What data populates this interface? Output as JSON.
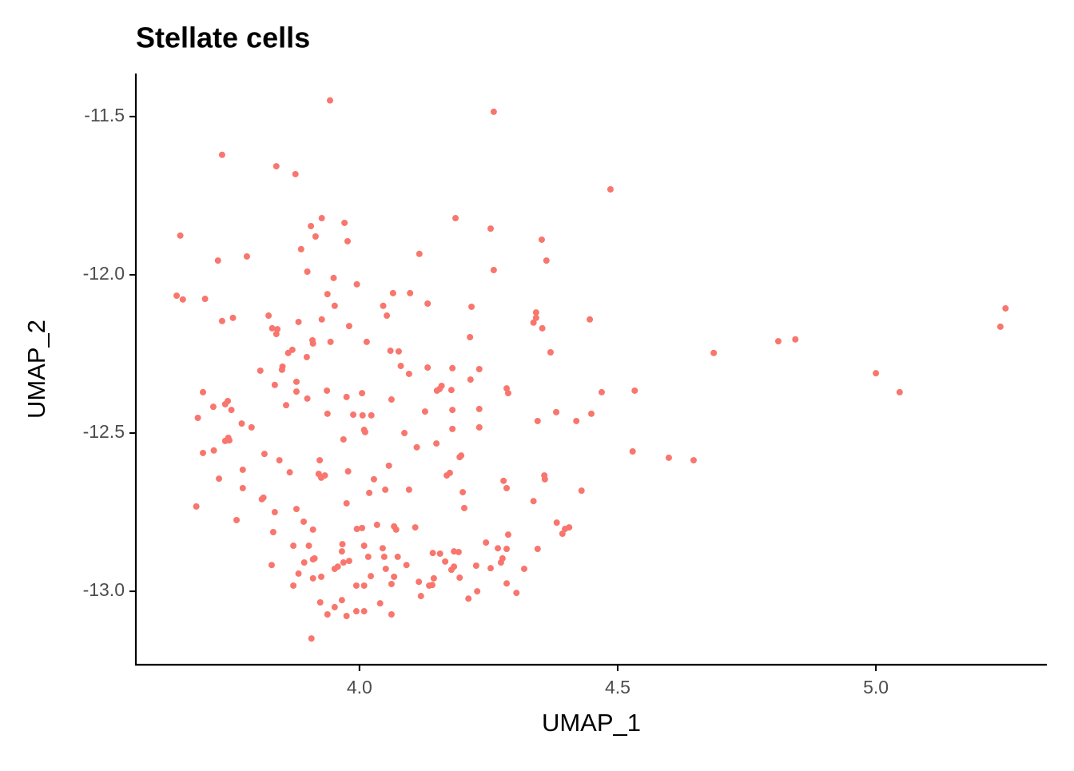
{
  "chart_data": {
    "type": "scatter",
    "title": "Stellate cells",
    "x_label": "UMAP_1",
    "y_label": "UMAP_2",
    "color": "#F8766D",
    "xlim": [
      3.567,
      5.331
    ],
    "ylim": [
      -13.232,
      -11.364
    ],
    "xticks": [
      {
        "value": 4,
        "label": "4.0"
      },
      4.5,
      {
        "value": 5,
        "label": "5.0"
      }
    ],
    "yticks": [
      -11.5,
      {
        "value": -12,
        "label": "-12.0"
      },
      -12.5,
      {
        "value": -13,
        "label": "-13.0"
      }
    ],
    "x": [
      3.943,
      4.26,
      3.734,
      3.839,
      3.876,
      4.486,
      3.653,
      3.971,
      3.927,
      3.906,
      3.915,
      4.254,
      4.186,
      3.977,
      3.887,
      4.353,
      4.116,
      3.726,
      3.782,
      4.362,
      4.26,
      3.899,
      3.95,
      3.646,
      3.658,
      3.701,
      3.995,
      3.938,
      4.065,
      4.098,
      4.046,
      3.952,
      4.132,
      4.217,
      4.342,
      4.342,
      5.251,
      5.241,
      3.734,
      3.755,
      3.824,
      3.882,
      3.927,
      4.053,
      3.98,
      4.354,
      4.337,
      4.446,
      3.831,
      3.841,
      3.909,
      3.91,
      3.944,
      3.839,
      4.214,
      4.014,
      3.87,
      3.862,
      4.06,
      4.076,
      4.37,
      4.686,
      4.811,
      4.844,
      3.898,
      3.851,
      3.85,
      3.808,
      4.08,
      4.096,
      4.132,
      4.18,
      4.232,
      3.878,
      3.878,
      4.215,
      3.836,
      3.937,
      4.155,
      4.159,
      4.15,
      4.178,
      4.285,
      4.288,
      5.0,
      5.046,
      4.469,
      4.533,
      3.697,
      3.745,
      3.74,
      3.717,
      3.752,
      3.899,
      3.975,
      4.005,
      4.062,
      3.858,
      4.232,
      4.127,
      4.18,
      3.938,
      3.988,
      4.006,
      4.023,
      4.009,
      4.011,
      3.687,
      3.772,
      3.791,
      4.345,
      4.381,
      4.42,
      4.449,
      4.232,
      4.18,
      4.087,
      3.969,
      4.149,
      4.111,
      3.746,
      3.74,
      3.748,
      3.697,
      3.718,
      3.816,
      3.845,
      4.529,
      4.599,
      4.647,
      4.197,
      4.194,
      3.923,
      4.057,
      3.774,
      3.865,
      3.978,
      4.175,
      4.169,
      3.921,
      3.926,
      3.933,
      3.728,
      4.028,
      4.279,
      4.285,
      3.774,
      4.05,
      4.096,
      4.2,
      4.358,
      4.359,
      4.43,
      3.814,
      3.811,
      3.975,
      4.019,
      4.337,
      4.203,
      3.684,
      3.878,
      3.836,
      3.762,
      3.892,
      3.833,
      3.91,
      4.034,
      4.005,
      3.995,
      4.108,
      4.067,
      4.071,
      4.382,
      4.398,
      4.406,
      4.393,
      4.288,
      3.872,
      3.902,
      3.967,
      3.966,
      4.009,
      4.045,
      4.074,
      4.048,
      4.245,
      4.268,
      4.285,
      4.277,
      4.274,
      4.345,
      4.192,
      4.183,
      4.142,
      4.156,
      3.83,
      3.893,
      3.91,
      3.913,
      3.969,
      3.958,
      3.952,
      3.98,
      4.017,
      4.091,
      4.051,
      4.166,
      4.183,
      4.178,
      4.226,
      4.254,
      4.319,
      3.882,
      3.926,
      4.022,
      4.067,
      4.144,
      4.141,
      4.135,
      3.872,
      3.91,
      3.994,
      4.009,
      4.062,
      4.115,
      4.194,
      4.285,
      4.228,
      4.304,
      4.211,
      4.119,
      3.924,
      3.966,
      4.04,
      3.994,
      4.009,
      3.952,
      3.975,
      4.062,
      3.938,
      3.907
    ],
    "values": [
      -11.449,
      -11.485,
      -11.621,
      -11.657,
      -11.682,
      -11.73,
      -11.876,
      -11.836,
      -11.821,
      -11.846,
      -11.879,
      -11.854,
      -11.821,
      -11.894,
      -11.919,
      -11.889,
      -11.934,
      -11.955,
      -11.942,
      -11.955,
      -11.985,
      -11.99,
      -12.01,
      -12.066,
      -12.078,
      -12.076,
      -12.03,
      -12.061,
      -12.058,
      -12.058,
      -12.098,
      -12.098,
      -12.091,
      -12.101,
      -12.119,
      -12.136,
      -12.106,
      -12.164,
      -12.146,
      -12.136,
      -12.129,
      -12.149,
      -12.141,
      -12.129,
      -12.162,
      -12.169,
      -12.151,
      -12.141,
      -12.169,
      -12.172,
      -12.207,
      -12.217,
      -12.212,
      -12.187,
      -12.197,
      -12.212,
      -12.237,
      -12.247,
      -12.24,
      -12.242,
      -12.245,
      -12.247,
      -12.21,
      -12.204,
      -12.26,
      -12.29,
      -12.3,
      -12.303,
      -12.288,
      -12.313,
      -12.293,
      -12.295,
      -12.298,
      -12.338,
      -12.369,
      -12.331,
      -12.348,
      -12.366,
      -12.361,
      -12.351,
      -12.366,
      -12.364,
      -12.359,
      -12.374,
      -12.311,
      -12.371,
      -12.371,
      -12.366,
      -12.371,
      -12.399,
      -12.409,
      -12.417,
      -12.427,
      -12.391,
      -12.386,
      -12.374,
      -12.394,
      -12.412,
      -12.424,
      -12.432,
      -12.427,
      -12.439,
      -12.442,
      -12.444,
      -12.444,
      -12.49,
      -12.497,
      -12.452,
      -12.47,
      -12.482,
      -12.462,
      -12.434,
      -12.462,
      -12.439,
      -12.482,
      -12.487,
      -12.5,
      -12.52,
      -12.533,
      -12.545,
      -12.515,
      -12.525,
      -12.523,
      -12.563,
      -12.555,
      -12.566,
      -12.586,
      -12.558,
      -12.578,
      -12.586,
      -12.571,
      -12.576,
      -12.586,
      -12.603,
      -12.616,
      -12.624,
      -12.621,
      -12.626,
      -12.634,
      -12.629,
      -12.641,
      -12.634,
      -12.644,
      -12.646,
      -12.651,
      -12.674,
      -12.674,
      -12.679,
      -12.679,
      -12.687,
      -12.634,
      -12.646,
      -12.682,
      -12.704,
      -12.709,
      -12.722,
      -12.689,
      -12.715,
      -12.737,
      -12.732,
      -12.74,
      -12.75,
      -12.775,
      -12.78,
      -12.813,
      -12.805,
      -12.79,
      -12.8,
      -12.803,
      -12.798,
      -12.795,
      -12.805,
      -12.783,
      -12.803,
      -12.798,
      -12.818,
      -12.821,
      -12.856,
      -12.856,
      -12.851,
      -12.874,
      -12.856,
      -12.864,
      -12.891,
      -12.891,
      -12.846,
      -12.864,
      -12.866,
      -12.896,
      -12.909,
      -12.866,
      -12.876,
      -12.874,
      -12.879,
      -12.881,
      -12.917,
      -12.909,
      -12.899,
      -12.896,
      -12.909,
      -12.922,
      -12.929,
      -12.904,
      -12.891,
      -12.917,
      -12.929,
      -12.906,
      -12.922,
      -12.932,
      -12.919,
      -12.927,
      -12.929,
      -12.944,
      -12.954,
      -12.952,
      -12.954,
      -12.959,
      -12.98,
      -12.982,
      -12.982,
      -12.959,
      -12.982,
      -12.982,
      -12.977,
      -12.97,
      -12.957,
      -12.975,
      -13.0,
      -13.005,
      -13.023,
      -13.015,
      -13.035,
      -13.028,
      -13.038,
      -13.063,
      -13.063,
      -13.05,
      -13.078,
      -13.073,
      -13.073,
      -13.149
    ]
  }
}
